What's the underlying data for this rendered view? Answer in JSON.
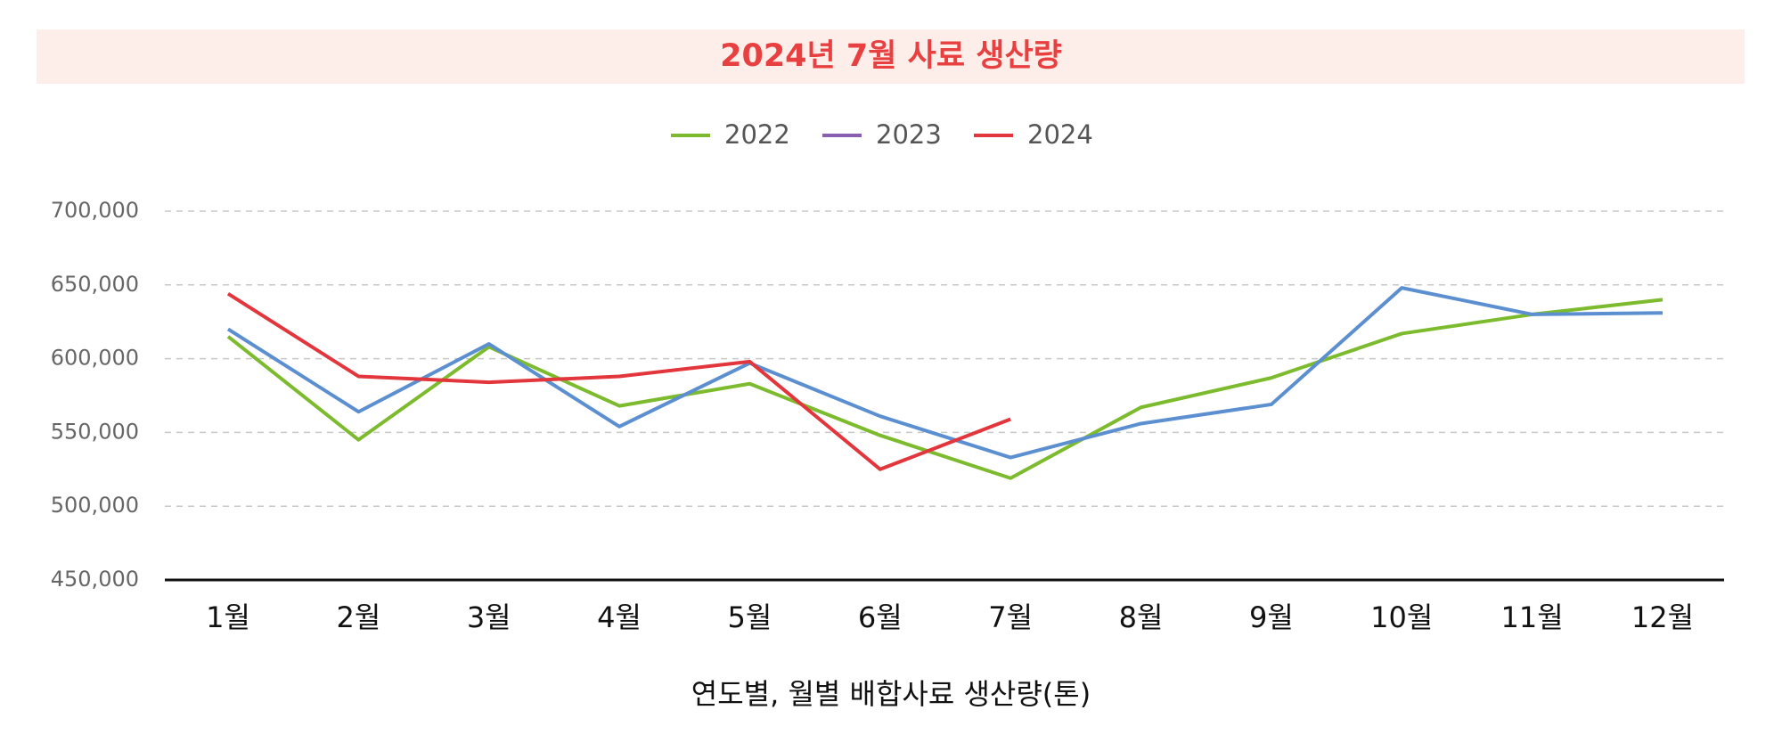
{
  "chart_data": {
    "type": "line",
    "title": "2024년 7월 사료 생산량",
    "x_label": "연도별, 월별 배합사료 생산량(톤)",
    "categories": [
      "1월",
      "2월",
      "3월",
      "4월",
      "5월",
      "6월",
      "7월",
      "8월",
      "9월",
      "10월",
      "11월",
      "12월"
    ],
    "series": [
      {
        "name": "2022",
        "color": "#7dbb2e",
        "legend_color": "#7dbb2e",
        "values": [
          615000,
          545000,
          608000,
          568000,
          583000,
          548000,
          519000,
          567000,
          587000,
          617000,
          630000,
          640000
        ]
      },
      {
        "name": "2023",
        "color": "#5b8fd0",
        "legend_color": "#8a5fb0",
        "values": [
          620000,
          564000,
          610000,
          554000,
          597000,
          561000,
          533000,
          556000,
          569000,
          648000,
          630000,
          631000
        ]
      },
      {
        "name": "2024",
        "color": "#e3363c",
        "legend_color": "#e3363c",
        "values": [
          644000,
          588000,
          584000,
          588000,
          598000,
          525000,
          559000,
          null,
          null,
          null,
          null,
          null
        ]
      }
    ],
    "ylim": [
      450000,
      700000
    ],
    "yticks": [
      {
        "value": 450000,
        "label": "450,000"
      },
      {
        "value": 500000,
        "label": "500,000"
      },
      {
        "value": 550000,
        "label": "550,000"
      },
      {
        "value": 600000,
        "label": "600,000"
      },
      {
        "value": 650000,
        "label": "650,000"
      },
      {
        "value": 700000,
        "label": "700,000"
      }
    ],
    "grid": true,
    "legend": "top"
  }
}
